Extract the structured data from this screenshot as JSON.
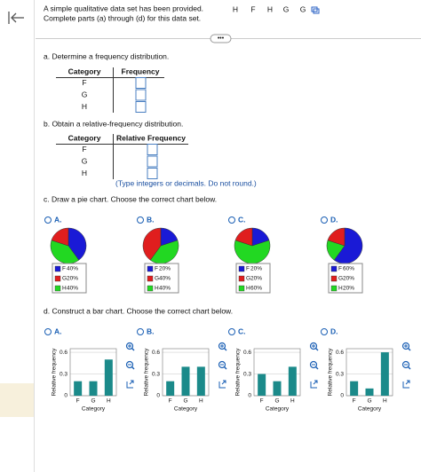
{
  "header": {
    "intro": "A simple qualitative data set has been provided.",
    "instruction": "Complete parts (a) through (d) for this data set.",
    "data_set": [
      "H",
      "F",
      "H",
      "G",
      "G"
    ]
  },
  "part_a": {
    "prompt": "a. Determine a frequency distribution.",
    "columns": [
      "Category",
      "Frequency"
    ],
    "rows": [
      "F",
      "G",
      "H"
    ]
  },
  "part_b": {
    "prompt": "b. Obtain a relative-frequency distribution.",
    "columns": [
      "Category",
      "Relative Frequency"
    ],
    "rows": [
      "F",
      "G",
      "H"
    ],
    "note": "(Type integers or decimals. Do not round.)"
  },
  "part_c": {
    "prompt": "c. Draw a pie chart. Choose the correct chart below.",
    "colors": [
      "#1a1ad6",
      "#e01e1e",
      "#22d822"
    ],
    "options": [
      {
        "label": "A.",
        "slices": [
          {
            "name": "F",
            "value": 40,
            "value_label": "40%"
          },
          {
            "name": "G",
            "value": 20,
            "value_label": "20%"
          },
          {
            "name": "H",
            "value": 40,
            "value_label": "40%"
          }
        ]
      },
      {
        "label": "B.",
        "slices": [
          {
            "name": "F",
            "value": 20,
            "value_label": "20%"
          },
          {
            "name": "G",
            "value": 40,
            "value_label": "40%"
          },
          {
            "name": "H",
            "value": 40,
            "value_label": "40%"
          }
        ]
      },
      {
        "label": "C.",
        "slices": [
          {
            "name": "F",
            "value": 20,
            "value_label": "20%"
          },
          {
            "name": "G",
            "value": 20,
            "value_label": "20%"
          },
          {
            "name": "H",
            "value": 60,
            "value_label": "60%"
          }
        ]
      },
      {
        "label": "D.",
        "slices": [
          {
            "name": "F",
            "value": 60,
            "value_label": "60%"
          },
          {
            "name": "G",
            "value": 20,
            "value_label": "20%"
          },
          {
            "name": "H",
            "value": 20,
            "value_label": "20%"
          }
        ]
      }
    ]
  },
  "part_d": {
    "prompt": "d. Construct a bar chart. Choose the correct chart below.",
    "categories": [
      "F",
      "G",
      "H"
    ],
    "y_label": "Relative frequency",
    "x_label": "Category",
    "ylim": [
      0,
      0.65
    ],
    "yticks": [
      0,
      0.3,
      0.6
    ],
    "color": "#1b8a8a",
    "options": [
      {
        "label": "A.",
        "values": [
          0.2,
          0.2,
          0.5
        ]
      },
      {
        "label": "B.",
        "values": [
          0.2,
          0.4,
          0.4
        ]
      },
      {
        "label": "C.",
        "values": [
          0.3,
          0.2,
          0.4
        ]
      },
      {
        "label": "D.",
        "values": [
          0.2,
          0.1,
          0.6
        ]
      }
    ]
  }
}
